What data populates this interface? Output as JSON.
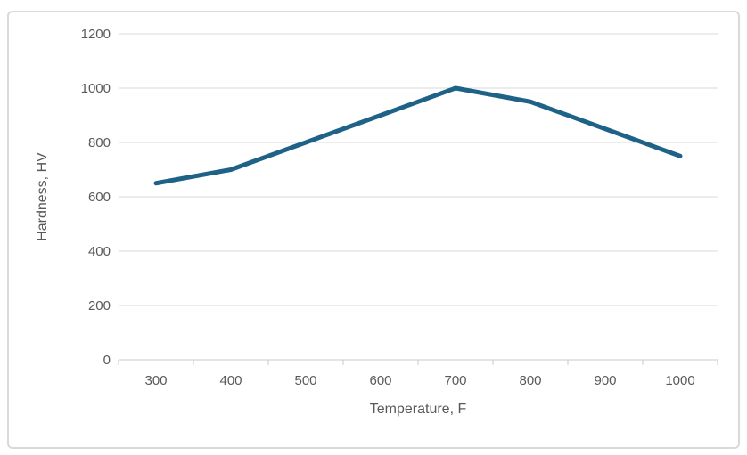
{
  "chart_data": {
    "type": "line",
    "title": "",
    "categories": [
      300,
      400,
      500,
      600,
      700,
      800,
      900,
      1000
    ],
    "values": [
      650,
      700,
      800,
      900,
      1000,
      950,
      850,
      750
    ],
    "xlabel": "Temperature, F",
    "ylabel": "Hardness, HV",
    "ylim": [
      0,
      1200
    ],
    "yticks": [
      0,
      200,
      400,
      600,
      800,
      1000,
      1200
    ],
    "grid": "horizontal",
    "legend": "none",
    "line_width": 5,
    "colors": {
      "line": "#1F6287",
      "gridline": "#DADADA",
      "axis_line": "#C9C9C9",
      "tick_label": "#595959",
      "axis_title": "#595959",
      "frame_border": "#D9D9D9",
      "background": "#FFFFFF"
    }
  }
}
